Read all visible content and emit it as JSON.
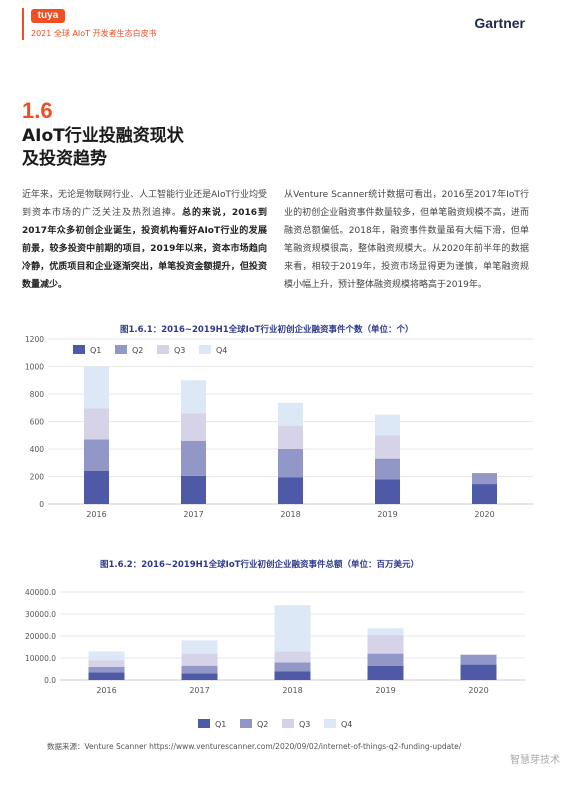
{
  "header": {
    "brand": "tuya",
    "subtitle": "2021 全球 AIoT 开发者生态白皮书",
    "partner": "Gartner"
  },
  "section": {
    "number": "1.6",
    "title_line1": "AIoT行业投融资现状",
    "title_line2": "及投资趋势"
  },
  "para_left": {
    "normal": "近年来，无论是物联网行业、人工智能行业还是AIoT行业均受到资本市场的广泛关注及热烈追捧。",
    "bold": "总的来说，2016到2017年众多初创企业诞生，投资机构看好AIoT行业的发展前景，较多投资中前期的项目，2019年以来，资本市场趋向冷静，优质项目和企业逐渐突出，单笔投资金额提升，但投资数量减少。"
  },
  "para_right": "从Venture Scanner统计数据可看出，2016至2017年IoT行业的初创企业融资事件数量较多，但单笔融资规模不高，进而融资总额偏低。2018年，融资事件数量虽有大幅下滑，但单笔融资规模很高，整体融资规模大。从2020年前半年的数据来看，相较于2019年，投资市场显得更为谨慎，单笔融资规模小幅上升，预计整体融资规模将略高于2019年。",
  "chart_data": [
    {
      "type": "bar",
      "stacked": true,
      "title": "图1.6.1：2016~2019H1全球IoT行业初创企业融资事件个数（单位：个）",
      "categories": [
        "2016",
        "2017",
        "2018",
        "2019",
        "2020"
      ],
      "ylim": [
        0,
        1200
      ],
      "yticks": [
        "0",
        "200",
        "400",
        "600",
        "800",
        "1000",
        "1200"
      ],
      "grid": true,
      "legend_position": "top-left",
      "series": [
        {
          "name": "Q1",
          "color": "#4e5aa6",
          "values": [
            240,
            205,
            195,
            180,
            145
          ]
        },
        {
          "name": "Q2",
          "color": "#9198c8",
          "values": [
            230,
            255,
            205,
            150,
            80
          ]
        },
        {
          "name": "Q3",
          "color": "#d6d3e8",
          "values": [
            225,
            200,
            170,
            170,
            0
          ]
        },
        {
          "name": "Q4",
          "color": "#dce8f5",
          "values": [
            305,
            240,
            165,
            150,
            0
          ]
        }
      ]
    },
    {
      "type": "bar",
      "stacked": true,
      "title": "图1.6.2：2016~2019H1全球IoT行业初创企业融资事件总额（单位：百万美元）",
      "categories": [
        "2016",
        "2017",
        "2018",
        "2019",
        "2020"
      ],
      "ylim": [
        0,
        40000
      ],
      "yticks": [
        "0.0",
        "10000.0",
        "20000.0",
        "30000.0",
        "40000.0"
      ],
      "grid": true,
      "legend_position": "bottom",
      "series": [
        {
          "name": "Q1",
          "color": "#4e5aa6",
          "values": [
            3500,
            3000,
            4000,
            6500,
            7000
          ]
        },
        {
          "name": "Q2",
          "color": "#9198c8",
          "values": [
            2500,
            3500,
            4000,
            5500,
            4500
          ]
        },
        {
          "name": "Q3",
          "color": "#d6d3e8",
          "values": [
            3000,
            5500,
            5000,
            8500,
            0
          ]
        },
        {
          "name": "Q4",
          "color": "#dce8f5",
          "values": [
            4000,
            6000,
            21000,
            3000,
            0
          ]
        }
      ]
    }
  ],
  "source": "数据来源：Venture Scanner    https://www.venturescanner.com/2020/09/02/internet-of-things-q2-funding-update/",
  "watermark": "智慧芽技术"
}
